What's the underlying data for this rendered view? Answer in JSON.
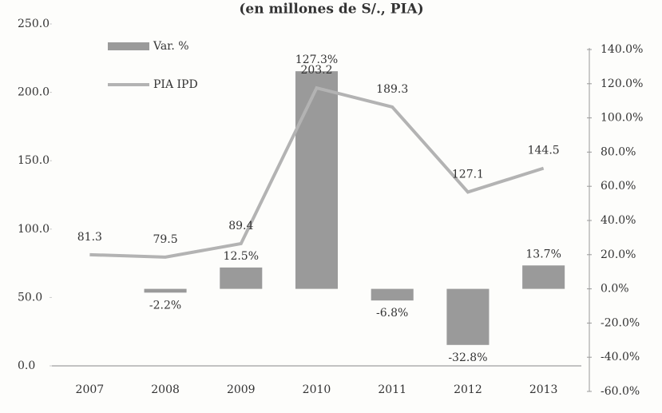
{
  "chart_data": {
    "type": "combo",
    "subtitle": "(en millones de S/., PIA)",
    "categories": [
      "2007",
      "2008",
      "2009",
      "2010",
      "2011",
      "2012",
      "2013"
    ],
    "series": [
      {
        "name": "Var. %",
        "type": "bar",
        "axis": "y2",
        "color": "#9a9a9a",
        "values": [
          null,
          -2.2,
          12.5,
          127.3,
          -6.8,
          -32.8,
          13.7
        ],
        "value_labels": [
          null,
          "-2.2%",
          "12.5%",
          "127.3%",
          "-6.8%",
          "-32.8%",
          "13.7%"
        ]
      },
      {
        "name": "PIA IPD",
        "type": "line",
        "color": "#b3b3b3",
        "values": [
          81.3,
          79.5,
          89.4,
          203.2,
          189.3,
          127.1,
          144.5
        ]
      }
    ],
    "ylim": [
      0,
      250
    ],
    "yticks": [
      {
        "value": 0,
        "label": "0.0"
      },
      {
        "value": 50,
        "label": "50.0"
      },
      {
        "value": 100,
        "label": "100.0"
      },
      {
        "value": 150,
        "label": "150.0"
      },
      {
        "value": 200,
        "label": "200.0"
      },
      {
        "value": 250,
        "label": "250.0"
      }
    ],
    "y2lim": [
      -60,
      140
    ],
    "y2ticks": [
      {
        "value": -60,
        "label": "-60.0%"
      },
      {
        "value": -40,
        "label": "-40.0%"
      },
      {
        "value": -20,
        "label": "-20.0%"
      },
      {
        "value": 0,
        "label": "0.0%"
      },
      {
        "value": 20,
        "label": "20.0%"
      },
      {
        "value": 40,
        "label": "40.0%"
      },
      {
        "value": 60,
        "label": "60.0%"
      },
      {
        "value": 80,
        "label": "80.0%"
      },
      {
        "value": 100,
        "label": "100.0%"
      },
      {
        "value": 120,
        "label": "120.0%"
      },
      {
        "value": 140,
        "label": "140.0%"
      }
    ],
    "legend": "top-left"
  }
}
